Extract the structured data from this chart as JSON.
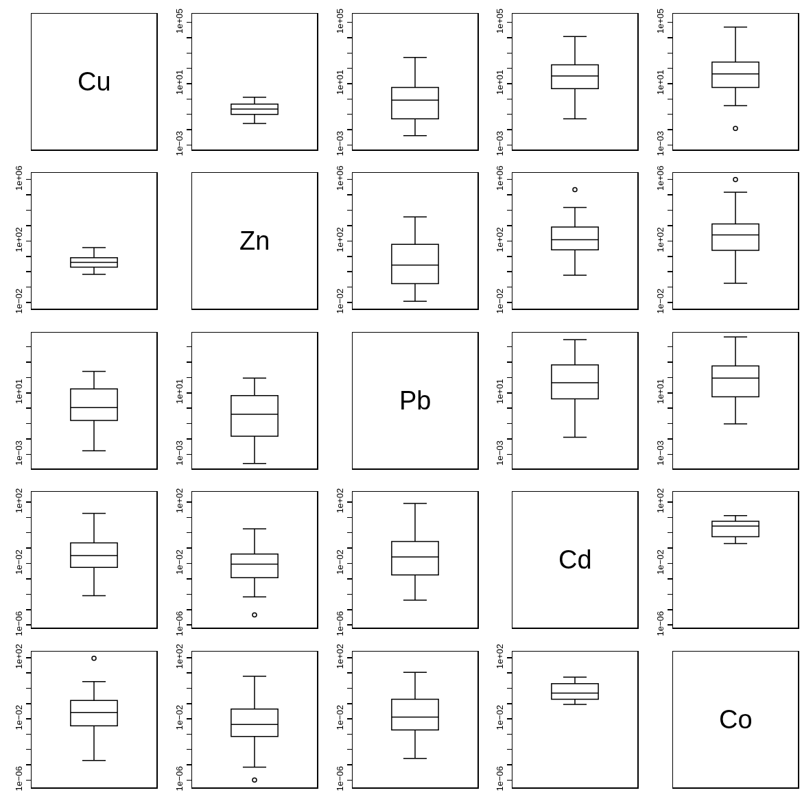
{
  "chart_data": [
    {
      "type": "other",
      "title": "Cu"
    },
    {
      "type": "box",
      "categories": [
        null
      ],
      "log": true,
      "tick_labels": "y",
      "ylim": [
        0.0005,
        370000
      ],
      "yticks": [
        {
          "value": 0.001,
          "label": "1e−03"
        },
        {
          "value": 0.01,
          "label": null
        },
        {
          "value": 0.1,
          "label": null
        },
        {
          "value": 1,
          "label": null
        },
        {
          "value": 10,
          "label": "1e+01"
        },
        {
          "value": 100,
          "label": null
        },
        {
          "value": 1000,
          "label": null
        },
        {
          "value": 10000,
          "label": null
        },
        {
          "value": 100000,
          "label": "1e+05"
        }
      ],
      "boxes": [
        {
          "low": 0.025,
          "q1": 0.1,
          "median": 0.22,
          "q3": 0.46,
          "high": 1.3
        }
      ]
    },
    {
      "type": "box",
      "categories": [
        null
      ],
      "log": true,
      "tick_labels": "y",
      "ylim": [
        0.0005,
        370000
      ],
      "yticks": [
        {
          "value": 0.001,
          "label": "1e−03"
        },
        {
          "value": 0.01,
          "label": null
        },
        {
          "value": 0.1,
          "label": null
        },
        {
          "value": 1,
          "label": null
        },
        {
          "value": 10,
          "label": "1e+01"
        },
        {
          "value": 100,
          "label": null
        },
        {
          "value": 1000,
          "label": null
        },
        {
          "value": 10000,
          "label": null
        },
        {
          "value": 100000,
          "label": "1e+05"
        }
      ],
      "boxes": [
        {
          "low": 0.004,
          "q1": 0.05,
          "median": 0.83,
          "q3": 5.6,
          "high": 520
        }
      ]
    },
    {
      "type": "box",
      "categories": [
        null
      ],
      "log": true,
      "tick_labels": "y",
      "ylim": [
        0.0005,
        370000
      ],
      "yticks": [
        {
          "value": 0.001,
          "label": "1e−03"
        },
        {
          "value": 0.01,
          "label": null
        },
        {
          "value": 0.1,
          "label": null
        },
        {
          "value": 1,
          "label": null
        },
        {
          "value": 10,
          "label": "1e+01"
        },
        {
          "value": 100,
          "label": null
        },
        {
          "value": 1000,
          "label": null
        },
        {
          "value": 10000,
          "label": null
        },
        {
          "value": 100000,
          "label": "1e+05"
        }
      ],
      "boxes": [
        {
          "low": 0.05,
          "q1": 4.7,
          "median": 32,
          "q3": 170,
          "high": 12000
        }
      ]
    },
    {
      "type": "box",
      "categories": [
        null
      ],
      "log": true,
      "tick_labels": "y",
      "ylim": [
        0.0005,
        370000
      ],
      "yticks": [
        {
          "value": 0.001,
          "label": "1e−03"
        },
        {
          "value": 0.01,
          "label": null
        },
        {
          "value": 0.1,
          "label": null
        },
        {
          "value": 1,
          "label": null
        },
        {
          "value": 10,
          "label": "1e+01"
        },
        {
          "value": 100,
          "label": null
        },
        {
          "value": 1000,
          "label": null
        },
        {
          "value": 10000,
          "label": null
        },
        {
          "value": 100000,
          "label": "1e+05"
        }
      ],
      "boxes": [
        {
          "low": 0.37,
          "q1": 5.6,
          "median": 43,
          "q3": 260,
          "high": 49000,
          "outliers": [
            0.012
          ]
        }
      ]
    },
    {
      "type": "box",
      "categories": [
        null
      ],
      "log": true,
      "tick_labels": "y",
      "ylim": [
        0.004,
        2700000
      ],
      "yticks": [
        {
          "value": 0.01,
          "label": "1e−02"
        },
        {
          "value": 0.1,
          "label": null
        },
        {
          "value": 1,
          "label": null
        },
        {
          "value": 10,
          "label": null
        },
        {
          "value": 100,
          "label": "1e+02"
        },
        {
          "value": 1000,
          "label": null
        },
        {
          "value": 10000,
          "label": null
        },
        {
          "value": 100000,
          "label": null
        },
        {
          "value": 1000000,
          "label": "1e+06"
        }
      ],
      "boxes": [
        {
          "low": 0.68,
          "q1": 2.0,
          "median": 4.1,
          "q3": 8.1,
          "high": 37
        }
      ]
    },
    {
      "type": "other",
      "title": "Zn"
    },
    {
      "type": "box",
      "categories": [
        null
      ],
      "log": true,
      "tick_labels": "y",
      "ylim": [
        0.004,
        2700000
      ],
      "yticks": [
        {
          "value": 0.01,
          "label": "1e−02"
        },
        {
          "value": 0.1,
          "label": null
        },
        {
          "value": 1,
          "label": null
        },
        {
          "value": 10,
          "label": null
        },
        {
          "value": 100,
          "label": "1e+02"
        },
        {
          "value": 1000,
          "label": null
        },
        {
          "value": 10000,
          "label": null
        },
        {
          "value": 100000,
          "label": null
        },
        {
          "value": 1000000,
          "label": "1e+06"
        }
      ],
      "boxes": [
        {
          "low": 0.012,
          "q1": 0.17,
          "median": 2.7,
          "q3": 60,
          "high": 3700
        }
      ]
    },
    {
      "type": "box",
      "categories": [
        null
      ],
      "log": true,
      "tick_labels": "y",
      "ylim": [
        0.004,
        2700000
      ],
      "yticks": [
        {
          "value": 0.01,
          "label": "1e−02"
        },
        {
          "value": 0.1,
          "label": null
        },
        {
          "value": 1,
          "label": null
        },
        {
          "value": 10,
          "label": null
        },
        {
          "value": 100,
          "label": "1e+02"
        },
        {
          "value": 1000,
          "label": null
        },
        {
          "value": 10000,
          "label": null
        },
        {
          "value": 100000,
          "label": null
        },
        {
          "value": 1000000,
          "label": "1e+06"
        }
      ],
      "boxes": [
        {
          "low": 0.6,
          "q1": 27,
          "median": 120,
          "q3": 810,
          "high": 15000,
          "outliers": [
            220000
          ]
        }
      ]
    },
    {
      "type": "box",
      "categories": [
        null
      ],
      "log": true,
      "tick_labels": "y",
      "ylim": [
        0.004,
        2700000
      ],
      "yticks": [
        {
          "value": 0.01,
          "label": "1e−02"
        },
        {
          "value": 0.1,
          "label": null
        },
        {
          "value": 1,
          "label": null
        },
        {
          "value": 10,
          "label": null
        },
        {
          "value": 100,
          "label": "1e+02"
        },
        {
          "value": 1000,
          "label": null
        },
        {
          "value": 10000,
          "label": null
        },
        {
          "value": 100000,
          "label": null
        },
        {
          "value": 1000000,
          "label": "1e+06"
        }
      ],
      "boxes": [
        {
          "low": 0.18,
          "q1": 25,
          "median": 250,
          "q3": 1300,
          "high": 150000,
          "outliers": [
            1000000
          ]
        }
      ]
    },
    {
      "type": "box",
      "categories": [
        null
      ],
      "log": true,
      "tick_labels": "y",
      "ylim": [
        0.00012,
        83000
      ],
      "yticks": [
        {
          "value": 0.001,
          "label": "1e−03"
        },
        {
          "value": 0.01,
          "label": null
        },
        {
          "value": 0.1,
          "label": null
        },
        {
          "value": 1,
          "label": null
        },
        {
          "value": 10,
          "label": "1e+01"
        },
        {
          "value": 100,
          "label": null
        },
        {
          "value": 1000,
          "label": null
        },
        {
          "value": 10000,
          "label": null
        }
      ],
      "boxes": [
        {
          "low": 0.0017,
          "q1": 0.16,
          "median": 1.1,
          "q3": 18,
          "high": 250
        }
      ]
    },
    {
      "type": "box",
      "categories": [
        null
      ],
      "log": true,
      "tick_labels": "y",
      "ylim": [
        0.00012,
        83000
      ],
      "yticks": [
        {
          "value": 0.001,
          "label": "1e−03"
        },
        {
          "value": 0.01,
          "label": null
        },
        {
          "value": 0.1,
          "label": null
        },
        {
          "value": 1,
          "label": null
        },
        {
          "value": 10,
          "label": "1e+01"
        },
        {
          "value": 100,
          "label": null
        },
        {
          "value": 1000,
          "label": null
        },
        {
          "value": 10000,
          "label": null
        }
      ],
      "boxes": [
        {
          "low": 0.00025,
          "q1": 0.015,
          "median": 0.4,
          "q3": 6.6,
          "high": 91
        }
      ]
    },
    {
      "type": "other",
      "title": "Pb"
    },
    {
      "type": "box",
      "categories": [
        null
      ],
      "log": true,
      "tick_labels": "y",
      "ylim": [
        0.00012,
        83000
      ],
      "yticks": [
        {
          "value": 0.001,
          "label": "1e−03"
        },
        {
          "value": 0.01,
          "label": null
        },
        {
          "value": 0.1,
          "label": null
        },
        {
          "value": 1,
          "label": null
        },
        {
          "value": 10,
          "label": "1e+01"
        },
        {
          "value": 100,
          "label": null
        },
        {
          "value": 1000,
          "label": null
        },
        {
          "value": 10000,
          "label": null
        }
      ],
      "boxes": [
        {
          "low": 0.013,
          "q1": 4.1,
          "median": 46,
          "q3": 660,
          "high": 29000
        }
      ]
    },
    {
      "type": "box",
      "categories": [
        null
      ],
      "log": true,
      "tick_labels": "y",
      "ylim": [
        0.00012,
        83000
      ],
      "yticks": [
        {
          "value": 0.001,
          "label": "1e−03"
        },
        {
          "value": 0.01,
          "label": null
        },
        {
          "value": 0.1,
          "label": null
        },
        {
          "value": 1,
          "label": null
        },
        {
          "value": 10,
          "label": "1e+01"
        },
        {
          "value": 100,
          "label": null
        },
        {
          "value": 1000,
          "label": null
        },
        {
          "value": 10000,
          "label": null
        }
      ],
      "boxes": [
        {
          "low": 0.095,
          "q1": 5.5,
          "median": 91,
          "q3": 560,
          "high": 44000
        }
      ]
    },
    {
      "type": "box",
      "categories": [
        null
      ],
      "log": true,
      "tick_labels": "y",
      "ylim": [
        6.8e-07,
        460
      ],
      "yticks": [
        {
          "value": 1e-06,
          "label": "1e−06"
        },
        {
          "value": 1e-05,
          "label": null
        },
        {
          "value": 0.0001,
          "label": null
        },
        {
          "value": 0.001,
          "label": null
        },
        {
          "value": 0.01,
          "label": "1e−02"
        },
        {
          "value": 0.1,
          "label": null
        },
        {
          "value": 1,
          "label": null
        },
        {
          "value": 10,
          "label": null
        },
        {
          "value": 100,
          "label": "1e+02"
        }
      ],
      "boxes": [
        {
          "low": 8.1e-05,
          "q1": 0.0055,
          "median": 0.033,
          "q3": 0.22,
          "high": 18
        }
      ]
    },
    {
      "type": "box",
      "categories": [
        null
      ],
      "log": true,
      "tick_labels": "y",
      "ylim": [
        6.8e-07,
        460
      ],
      "yticks": [
        {
          "value": 1e-06,
          "label": "1e−06"
        },
        {
          "value": 1e-05,
          "label": null
        },
        {
          "value": 0.0001,
          "label": null
        },
        {
          "value": 0.001,
          "label": null
        },
        {
          "value": 0.01,
          "label": "1e−02"
        },
        {
          "value": 0.1,
          "label": null
        },
        {
          "value": 1,
          "label": null
        },
        {
          "value": 10,
          "label": null
        },
        {
          "value": 100,
          "label": "1e+02"
        }
      ],
      "boxes": [
        {
          "low": 6.8e-05,
          "q1": 0.0012,
          "median": 0.0091,
          "q3": 0.041,
          "high": 1.8,
          "outliers": [
            4.5e-06
          ]
        }
      ]
    },
    {
      "type": "box",
      "categories": [
        null
      ],
      "log": true,
      "tick_labels": "y",
      "ylim": [
        6.8e-07,
        460
      ],
      "yticks": [
        {
          "value": 1e-06,
          "label": "1e−06"
        },
        {
          "value": 1e-05,
          "label": null
        },
        {
          "value": 0.0001,
          "label": null
        },
        {
          "value": 0.001,
          "label": null
        },
        {
          "value": 0.01,
          "label": "1e−02"
        },
        {
          "value": 0.1,
          "label": null
        },
        {
          "value": 1,
          "label": null
        },
        {
          "value": 10,
          "label": null
        },
        {
          "value": 100,
          "label": "1e+02"
        }
      ],
      "boxes": [
        {
          "low": 4.1e-05,
          "q1": 0.0018,
          "median": 0.027,
          "q3": 0.27,
          "high": 81
        }
      ]
    },
    {
      "type": "other",
      "title": "Cd"
    },
    {
      "type": "box",
      "categories": [
        null
      ],
      "log": true,
      "tick_labels": "y",
      "ylim": [
        6.8e-07,
        460
      ],
      "yticks": [
        {
          "value": 1e-06,
          "label": "1e−06"
        },
        {
          "value": 1e-05,
          "label": null
        },
        {
          "value": 0.0001,
          "label": null
        },
        {
          "value": 0.001,
          "label": null
        },
        {
          "value": 0.01,
          "label": "1e−02"
        },
        {
          "value": 0.1,
          "label": null
        },
        {
          "value": 1,
          "label": null
        },
        {
          "value": 10,
          "label": null
        },
        {
          "value": 100,
          "label": "1e+02"
        }
      ],
      "boxes": [
        {
          "low": 0.2,
          "q1": 0.55,
          "median": 2.7,
          "q3": 5.5,
          "high": 13
        }
      ]
    },
    {
      "type": "box",
      "categories": [
        null
      ],
      "log": true,
      "tick_labels": "y",
      "ylim": [
        3.3e-07,
        250
      ],
      "yticks": [
        {
          "value": 1e-06,
          "label": "1e−06"
        },
        {
          "value": 1e-05,
          "label": null
        },
        {
          "value": 0.0001,
          "label": null
        },
        {
          "value": 0.001,
          "label": null
        },
        {
          "value": 0.01,
          "label": "1e−02"
        },
        {
          "value": 0.1,
          "label": null
        },
        {
          "value": 1,
          "label": null
        },
        {
          "value": 10,
          "label": null
        },
        {
          "value": 100,
          "label": "1e+02"
        }
      ],
      "boxes": [
        {
          "low": 1.9e-05,
          "q1": 0.0035,
          "median": 0.026,
          "q3": 0.16,
          "high": 2.7,
          "outliers": [
            91
          ]
        }
      ]
    },
    {
      "type": "box",
      "categories": [
        null
      ],
      "log": true,
      "tick_labels": "y",
      "ylim": [
        3.3e-07,
        250
      ],
      "yticks": [
        {
          "value": 1e-06,
          "label": "1e−06"
        },
        {
          "value": 1e-05,
          "label": null
        },
        {
          "value": 0.0001,
          "label": null
        },
        {
          "value": 0.001,
          "label": null
        },
        {
          "value": 0.01,
          "label": "1e−02"
        },
        {
          "value": 0.1,
          "label": null
        },
        {
          "value": 1,
          "label": null
        },
        {
          "value": 10,
          "label": null
        },
        {
          "value": 100,
          "label": "1e+02"
        }
      ],
      "boxes": [
        {
          "low": 6.9e-06,
          "q1": 0.00071,
          "median": 0.0043,
          "q3": 0.044,
          "high": 6,
          "outliers": [
            1e-06
          ]
        }
      ]
    },
    {
      "type": "box",
      "categories": [
        null
      ],
      "log": true,
      "tick_labels": "y",
      "ylim": [
        3.3e-07,
        250
      ],
      "yticks": [
        {
          "value": 1e-06,
          "label": "1e−06"
        },
        {
          "value": 1e-05,
          "label": null
        },
        {
          "value": 0.0001,
          "label": null
        },
        {
          "value": 0.001,
          "label": null
        },
        {
          "value": 0.01,
          "label": "1e−02"
        },
        {
          "value": 0.1,
          "label": null
        },
        {
          "value": 1,
          "label": null
        },
        {
          "value": 10,
          "label": null
        },
        {
          "value": 100,
          "label": "1e+02"
        }
      ],
      "boxes": [
        {
          "low": 2.6e-05,
          "q1": 0.0019,
          "median": 0.013,
          "q3": 0.19,
          "high": 11
        }
      ]
    },
    {
      "type": "box",
      "categories": [
        null
      ],
      "log": true,
      "tick_labels": "y",
      "ylim": [
        3.3e-07,
        250
      ],
      "yticks": [
        {
          "value": 1e-06,
          "label": "1e−06"
        },
        {
          "value": 1e-05,
          "label": null
        },
        {
          "value": 0.0001,
          "label": null
        },
        {
          "value": 0.001,
          "label": null
        },
        {
          "value": 0.01,
          "label": "1e−02"
        },
        {
          "value": 0.1,
          "label": null
        },
        {
          "value": 1,
          "label": null
        },
        {
          "value": 10,
          "label": null
        },
        {
          "value": 100,
          "label": "1e+02"
        }
      ],
      "boxes": [
        {
          "low": 0.087,
          "q1": 0.19,
          "median": 0.49,
          "q3": 2.0,
          "high": 5.4
        }
      ]
    },
    {
      "type": "other",
      "title": "Co"
    }
  ]
}
